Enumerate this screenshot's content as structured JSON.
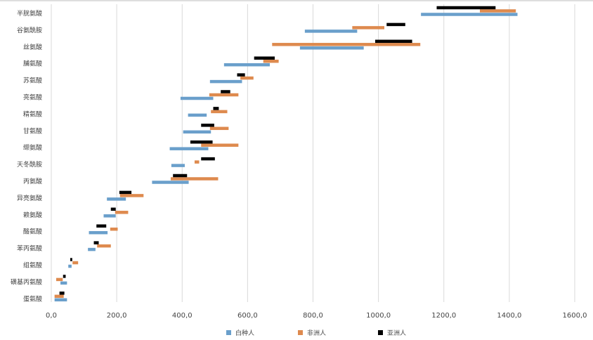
{
  "chart_data": {
    "type": "bar",
    "orientation": "horizontal-range",
    "title": "",
    "xlabel": "",
    "ylabel": "",
    "xlim": [
      0,
      1600
    ],
    "xticks": [
      0,
      200,
      400,
      600,
      800,
      1000,
      1200,
      1400,
      1600
    ],
    "xtick_labels": [
      "0,0",
      "200,0",
      "400,0",
      "600,0",
      "800,0",
      "1000,0",
      "1200,0",
      "1400,0",
      "1600,0"
    ],
    "grid": true,
    "legend_position": "bottom",
    "categories": [
      "半胱氨酸",
      "谷氨酰胺",
      "丝氨酸",
      "脯氨酸",
      "苏氨酸",
      "亮氨酸",
      "精氨酸",
      "甘氨酸",
      "缬氨酸",
      "天冬酰胺",
      "丙氨酸",
      "异亮氨酸",
      "赖氨酸",
      "酪氨酸",
      "苯丙氨酸",
      "组氨酸",
      "磺基丙氨酸",
      "蛋氨酸"
    ],
    "series": [
      {
        "name": "白种人",
        "color": "#6a9fcb",
        "ranges": [
          [
            1130,
            1425
          ],
          [
            775,
            935
          ],
          [
            760,
            955
          ],
          [
            528,
            668
          ],
          [
            485,
            583
          ],
          [
            395,
            495
          ],
          [
            418,
            475
          ],
          [
            403,
            488
          ],
          [
            362,
            480
          ],
          [
            367,
            408
          ],
          [
            308,
            420
          ],
          [
            170,
            228
          ],
          [
            160,
            197
          ],
          [
            115,
            172
          ],
          [
            112,
            135
          ],
          [
            52,
            62
          ],
          [
            28,
            48
          ],
          [
            10,
            48
          ]
        ]
      },
      {
        "name": "非洲人",
        "color": "#de8a4e",
        "ranges": [
          [
            1310,
            1420
          ],
          [
            920,
            1018
          ],
          [
            675,
            1128
          ],
          [
            648,
            695
          ],
          [
            578,
            618
          ],
          [
            483,
            572
          ],
          [
            488,
            538
          ],
          [
            485,
            542
          ],
          [
            458,
            572
          ],
          [
            438,
            452
          ],
          [
            365,
            510
          ],
          [
            210,
            282
          ],
          [
            195,
            235
          ],
          [
            180,
            203
          ],
          [
            140,
            182
          ],
          [
            65,
            82
          ],
          [
            15,
            35
          ],
          [
            10,
            38
          ]
        ]
      },
      {
        "name": "亚洲人",
        "color": "#000000",
        "ranges": [
          [
            1178,
            1358
          ],
          [
            1025,
            1082
          ],
          [
            990,
            1103
          ],
          [
            620,
            683
          ],
          [
            568,
            592
          ],
          [
            518,
            547
          ],
          [
            495,
            512
          ],
          [
            458,
            498
          ],
          [
            425,
            493
          ],
          [
            458,
            500
          ],
          [
            372,
            415
          ],
          [
            208,
            245
          ],
          [
            182,
            197
          ],
          [
            138,
            168
          ],
          [
            130,
            145
          ],
          [
            58,
            64
          ],
          [
            36,
            44
          ],
          [
            25,
            40
          ]
        ]
      }
    ]
  }
}
